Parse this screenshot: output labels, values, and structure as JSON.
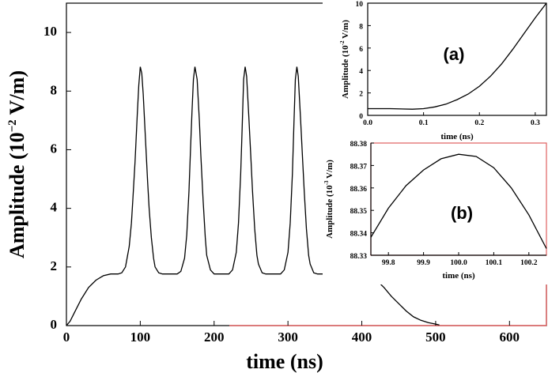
{
  "chart_data": [
    {
      "id": "main",
      "type": "line",
      "title": "",
      "xlabel": "time (ns)",
      "ylabel_prefix": "Amplitude (10",
      "ylabel_exp": "−2",
      "ylabel_suffix": " V/m)",
      "xlim": [
        0,
        650
      ],
      "ylim": [
        0,
        11
      ],
      "xticks": [
        0,
        100,
        200,
        300,
        400,
        500,
        600
      ],
      "yticks": [
        0,
        2,
        4,
        6,
        8,
        10
      ],
      "series": [
        {
          "x": [
            0,
            5,
            10,
            20,
            30,
            40,
            50,
            60,
            70,
            75,
            80,
            85,
            88,
            90,
            93,
            96,
            98,
            100,
            102,
            104,
            107,
            110,
            112,
            115,
            118,
            120,
            125,
            130,
            140,
            150,
            155,
            160,
            163,
            166,
            168,
            170,
            172,
            174,
            177,
            180,
            182,
            185,
            188,
            190,
            195,
            200,
            210,
            220,
            225,
            230,
            233,
            236,
            238,
            240,
            242,
            244,
            247,
            250,
            252,
            255,
            258,
            260,
            265,
            270,
            280,
            290,
            295,
            300,
            303,
            306,
            308,
            310,
            312,
            314,
            317,
            320,
            322,
            325,
            328,
            330,
            335,
            340,
            360,
            380,
            400,
            410,
            420,
            430,
            440,
            450,
            460,
            470,
            480,
            490,
            500,
            505
          ],
          "y": [
            0,
            0.15,
            0.4,
            0.9,
            1.3,
            1.55,
            1.7,
            1.76,
            1.76,
            1.8,
            2.0,
            2.7,
            3.5,
            4.3,
            5.6,
            7.2,
            8.2,
            8.83,
            8.6,
            7.9,
            6.4,
            4.9,
            4.0,
            3.0,
            2.3,
            2.0,
            1.8,
            1.76,
            1.76,
            1.76,
            1.85,
            2.3,
            3.1,
            4.6,
            6.0,
            7.3,
            8.4,
            8.83,
            8.4,
            7.0,
            5.8,
            4.3,
            3.0,
            2.4,
            1.9,
            1.76,
            1.76,
            1.76,
            1.9,
            2.5,
            3.5,
            5.2,
            6.8,
            8.4,
            8.83,
            8.5,
            7.1,
            5.6,
            4.6,
            3.3,
            2.4,
            2.1,
            1.8,
            1.76,
            1.76,
            1.76,
            1.9,
            2.5,
            3.5,
            5.2,
            6.8,
            8.4,
            8.83,
            8.5,
            7.1,
            5.6,
            4.6,
            3.3,
            2.4,
            2.1,
            1.8,
            1.76,
            1.76,
            1.76,
            1.76,
            1.7,
            1.55,
            1.3,
            1.0,
            0.75,
            0.5,
            0.3,
            0.18,
            0.1,
            0.05,
            0.02
          ]
        }
      ]
    },
    {
      "id": "inset-a",
      "type": "line",
      "panel_label": "(a)",
      "xlabel": "time (ns)",
      "ylabel_prefix": "Amplitude (10",
      "ylabel_exp": "-2",
      "ylabel_suffix": " V/m)",
      "xlim": [
        0,
        0.32
      ],
      "ylim": [
        0,
        10
      ],
      "xticks": [
        0.0,
        0.1,
        0.2,
        0.3
      ],
      "xtick_labels": [
        "0.0",
        "0.1",
        "0.2",
        "0.3"
      ],
      "yticks": [
        0,
        2,
        4,
        6,
        8,
        10
      ],
      "series": [
        {
          "x": [
            0,
            0.04,
            0.08,
            0.1,
            0.12,
            0.14,
            0.16,
            0.18,
            0.2,
            0.22,
            0.24,
            0.26,
            0.28,
            0.3,
            0.32
          ],
          "y": [
            0.6,
            0.6,
            0.55,
            0.6,
            0.75,
            1.0,
            1.4,
            1.9,
            2.6,
            3.5,
            4.6,
            5.9,
            7.3,
            8.7,
            10.2
          ]
        }
      ]
    },
    {
      "id": "inset-b",
      "type": "line",
      "panel_label": "(b)",
      "xlabel": "time (ns)",
      "ylabel_prefix": "Amplitude (10",
      "ylabel_exp": "-3",
      "ylabel_suffix": " V/m)",
      "xlim": [
        99.75,
        100.25
      ],
      "ylim": [
        88.33,
        88.38
      ],
      "xticks": [
        99.8,
        99.9,
        100.0,
        100.1,
        100.2
      ],
      "xtick_labels": [
        "99.8",
        "99.9",
        "100.0",
        "100.1",
        "100.2"
      ],
      "yticks": [
        88.33,
        88.34,
        88.35,
        88.36,
        88.37,
        88.38
      ],
      "ytick_labels": [
        "88.33",
        "88.34",
        "88.35",
        "88.36",
        "88.37",
        "88.38"
      ],
      "series": [
        {
          "x": [
            99.75,
            99.8,
            99.85,
            99.9,
            99.95,
            100.0,
            100.05,
            100.1,
            100.15,
            100.2,
            100.25
          ],
          "y": [
            88.338,
            88.351,
            88.361,
            88.368,
            88.373,
            88.375,
            88.374,
            88.369,
            88.36,
            88.348,
            88.333
          ]
        }
      ]
    }
  ]
}
